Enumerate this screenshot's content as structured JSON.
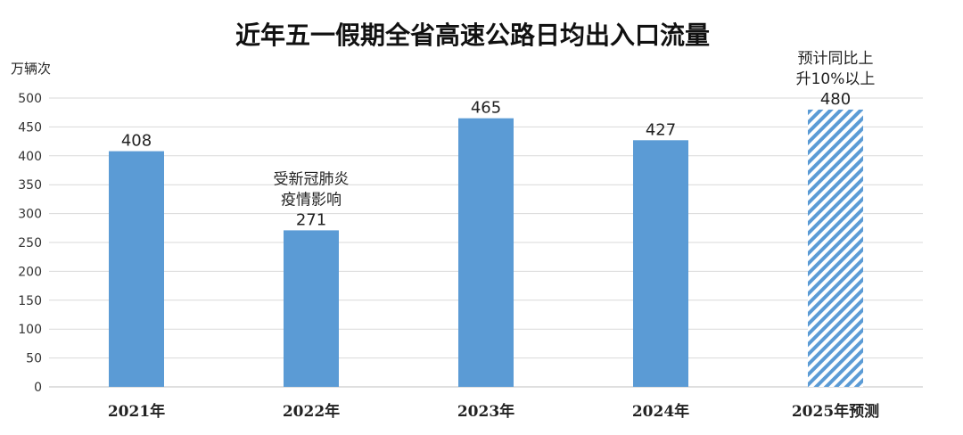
{
  "chart_data": {
    "type": "bar",
    "title": "近年五一假期全省高速公路日均出入口流量",
    "ylabel": "万辆次",
    "xlabel": "",
    "ylim": [
      0,
      500
    ],
    "yticks": [
      0,
      50,
      100,
      150,
      200,
      250,
      300,
      350,
      400,
      450,
      500
    ],
    "categories": [
      "2021年",
      "2022年",
      "2023年",
      "2024年",
      "2025年预测"
    ],
    "values": [
      408,
      271,
      465,
      427,
      480
    ],
    "bar_styles": [
      "solid",
      "solid",
      "solid",
      "solid",
      "hatched"
    ],
    "colors": {
      "bar": "#5b9bd5",
      "hatch": "#5b9bd5"
    },
    "grid": true,
    "annotations": [
      {
        "category": "2022年",
        "lines": [
          "受新冠肺炎",
          "疫情影响"
        ]
      },
      {
        "category": "2025年预测",
        "lines": [
          "预计同比上",
          "升10%以上"
        ]
      }
    ]
  }
}
